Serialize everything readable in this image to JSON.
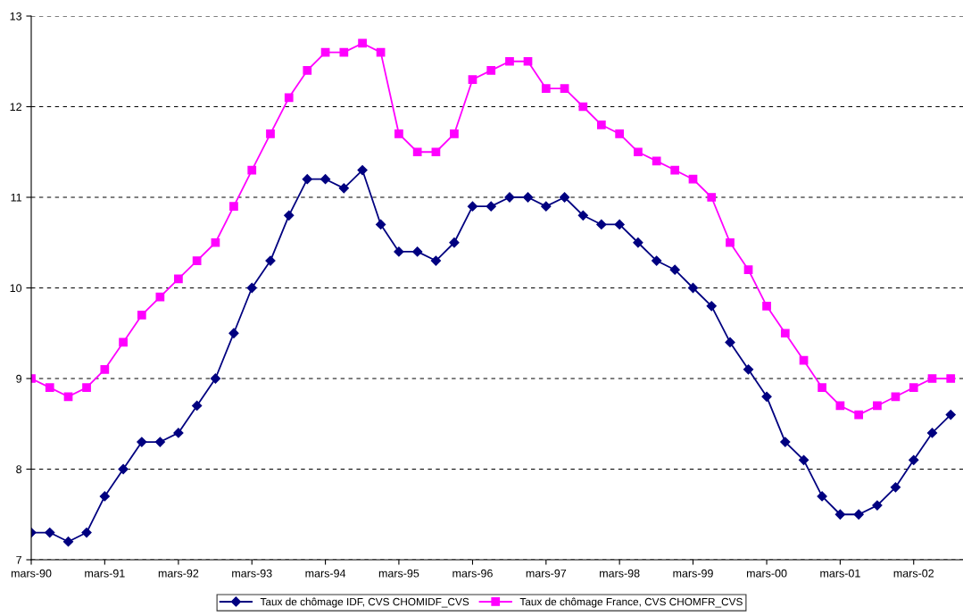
{
  "chart_data": {
    "type": "line",
    "x": [
      "1990-03",
      "1990-06",
      "1990-09",
      "1990-12",
      "1991-03",
      "1991-06",
      "1991-09",
      "1991-12",
      "1992-03",
      "1992-06",
      "1992-09",
      "1992-12",
      "1993-03",
      "1993-06",
      "1993-09",
      "1993-12",
      "1994-03",
      "1994-06",
      "1994-09",
      "1994-12",
      "1995-03",
      "1995-06",
      "1995-09",
      "1995-12",
      "1996-03",
      "1996-06",
      "1996-09",
      "1996-12",
      "1997-03",
      "1997-06",
      "1997-09",
      "1997-12",
      "1998-03",
      "1998-06",
      "1998-09",
      "1998-12",
      "1999-03",
      "1999-06",
      "1999-09",
      "1999-12",
      "2000-03",
      "2000-06",
      "2000-09",
      "2000-12",
      "2001-03",
      "2001-06",
      "2001-09",
      "2001-12",
      "2002-03",
      "2002-06",
      "2002-09"
    ],
    "series": [
      {
        "name": "Taux de chômage IDF, CVS CHOMIDF_CVS",
        "color": "#000080",
        "marker": "diamond",
        "values": [
          7.3,
          7.3,
          7.2,
          7.3,
          7.7,
          8.0,
          8.3,
          8.3,
          8.4,
          8.7,
          9.0,
          9.5,
          10.0,
          10.3,
          10.8,
          11.2,
          11.2,
          11.1,
          11.3,
          10.7,
          10.4,
          10.4,
          10.3,
          10.5,
          10.9,
          10.9,
          11.0,
          11.0,
          10.9,
          11.0,
          10.8,
          10.7,
          10.7,
          10.5,
          10.3,
          10.2,
          10.0,
          9.8,
          9.4,
          9.1,
          8.8,
          8.3,
          8.1,
          7.7,
          7.5,
          7.5,
          7.6,
          7.8,
          8.1,
          8.4,
          8.6
        ]
      },
      {
        "name": "Taux de chômage France, CVS CHOMFR_CVS",
        "color": "#ff00ff",
        "marker": "square",
        "values": [
          9.0,
          8.9,
          8.8,
          8.9,
          9.1,
          9.4,
          9.7,
          9.9,
          10.1,
          10.3,
          10.5,
          10.9,
          11.3,
          11.7,
          12.1,
          12.4,
          12.6,
          12.6,
          12.7,
          12.6,
          11.7,
          11.5,
          11.5,
          11.7,
          12.3,
          12.4,
          12.5,
          12.5,
          12.2,
          12.2,
          12.0,
          11.8,
          11.7,
          11.5,
          11.4,
          11.3,
          11.2,
          11.0,
          10.5,
          10.2,
          9.8,
          9.5,
          9.2,
          8.9,
          8.7,
          8.6,
          8.7,
          8.8,
          8.9,
          9.0,
          9.0
        ]
      }
    ],
    "xlim": [
      "1990-03",
      "2002-11"
    ],
    "xticks": [
      {
        "value": "1990-03",
        "label": "mars-90"
      },
      {
        "value": "1991-03",
        "label": "mars-91"
      },
      {
        "value": "1992-03",
        "label": "mars-92"
      },
      {
        "value": "1993-03",
        "label": "mars-93"
      },
      {
        "value": "1994-03",
        "label": "mars-94"
      },
      {
        "value": "1995-03",
        "label": "mars-95"
      },
      {
        "value": "1996-03",
        "label": "mars-96"
      },
      {
        "value": "1997-03",
        "label": "mars-97"
      },
      {
        "value": "1998-03",
        "label": "mars-98"
      },
      {
        "value": "1999-03",
        "label": "mars-99"
      },
      {
        "value": "2000-03",
        "label": "mars-00"
      },
      {
        "value": "2001-03",
        "label": "mars-01"
      },
      {
        "value": "2002-03",
        "label": "mars-02"
      }
    ],
    "ylim": [
      7,
      13
    ],
    "yticks": [
      7,
      8,
      9,
      10,
      11,
      12,
      13
    ],
    "grid": "y",
    "legend": "bottom",
    "line_style": "solid"
  }
}
